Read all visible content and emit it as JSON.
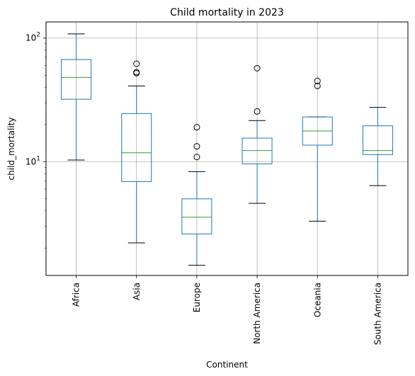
{
  "chart_data": {
    "type": "box",
    "title": "Child mortality in 2023",
    "xlabel": "Continent",
    "ylabel": "child_mortality",
    "yscale": "log",
    "ylim": [
      1.2,
      135
    ],
    "grid": true,
    "y_ticks": [
      {
        "value": 10,
        "base": "10",
        "exp": "1"
      },
      {
        "value": 100,
        "base": "10",
        "exp": "2"
      }
    ],
    "y_minor_ticks": [
      2,
      3,
      4,
      5,
      6,
      7,
      8,
      9,
      20,
      30,
      40,
      50,
      60,
      70,
      80,
      90
    ],
    "categories": [
      "Africa",
      "Asia",
      "Europe",
      "North America",
      "Oceania",
      "South America"
    ],
    "boxes": [
      {
        "category": "Africa",
        "whisker_low": 10.3,
        "q1": 32,
        "median": 48,
        "q3": 67,
        "whisker_high": 108,
        "outliers": []
      },
      {
        "category": "Asia",
        "whisker_low": 2.2,
        "q1": 6.9,
        "median": 11.8,
        "q3": 24.5,
        "whisker_high": 41,
        "outliers": [
          52,
          53,
          62
        ]
      },
      {
        "category": "Europe",
        "whisker_low": 1.45,
        "q1": 2.6,
        "median": 3.55,
        "q3": 5.0,
        "whisker_high": 8.3,
        "outliers": [
          10.9,
          13.3,
          19
        ]
      },
      {
        "category": "North America",
        "whisker_low": 4.6,
        "q1": 9.6,
        "median": 12.3,
        "q3": 15.5,
        "whisker_high": 21.5,
        "outliers": [
          25.5,
          57
        ]
      },
      {
        "category": "Oceania",
        "whisker_low": 3.3,
        "q1": 13.6,
        "median": 17.7,
        "q3": 23,
        "whisker_high": 23,
        "outliers": [
          41,
          45
        ]
      },
      {
        "category": "South America",
        "whisker_low": 6.4,
        "q1": 11.4,
        "median": 12.3,
        "q3": 19.5,
        "whisker_high": 27.5,
        "outliers": []
      }
    ],
    "colors": {
      "box": "#1f77b4",
      "median": "#2ca02c",
      "whisker_cap": "#000000",
      "grid": "#b0b0b0",
      "outlier": "#000000"
    }
  }
}
